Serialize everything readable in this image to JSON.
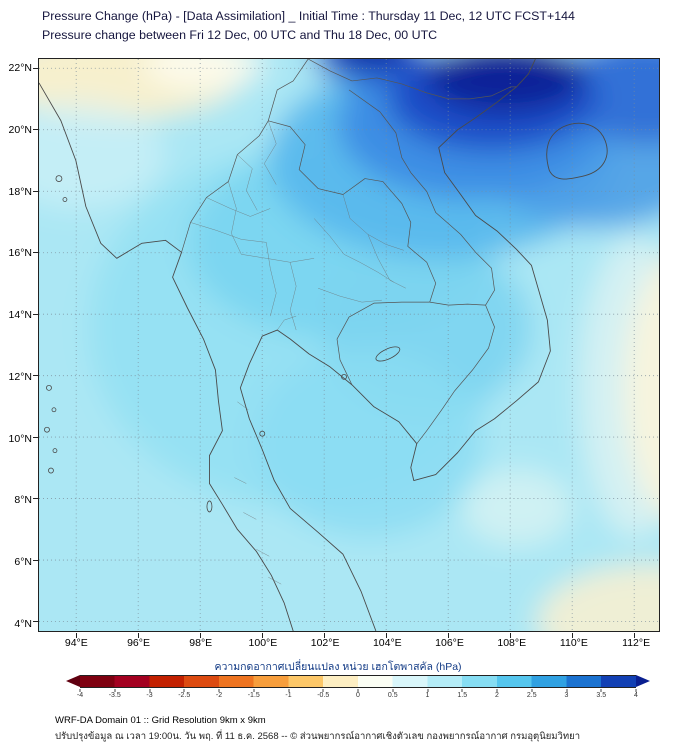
{
  "header": {
    "title_line1": "Pressure Change (hPa) - [Data Assimilation] _ Initial Time : Thursday 11 Dec, 12 UTC FCST+144",
    "title_line2": "Pressure change between Fri 12 Dec, 00 UTC and Thu 18 Dec, 00 UTC"
  },
  "axes": {
    "y_ticks": [
      "22°N",
      "20°N",
      "18°N",
      "16°N",
      "14°N",
      "12°N",
      "10°N",
      "8°N",
      "6°N",
      "4°N"
    ],
    "x_ticks": [
      "94°E",
      "96°E",
      "98°E",
      "100°E",
      "102°E",
      "104°E",
      "106°E",
      "108°E",
      "110°E",
      "112°E"
    ]
  },
  "colorbar": {
    "label": "ความกดอากาศเปลี่ยนแปลง หน่วย เฮกโตพาสคัล (hPa)",
    "tick_labels": [
      "-4",
      "-3.5",
      "-3",
      "-2.5",
      "-2",
      "-1.5",
      "-1",
      "-0.5",
      "0",
      "0.5",
      "1",
      "1.5",
      "2",
      "2.5",
      "3",
      "3.5",
      "4"
    ],
    "segment_colors": [
      "#7e0010",
      "#a30020",
      "#c22000",
      "#dc4a10",
      "#ee7420",
      "#f79e3c",
      "#fcc768",
      "#fdeec2",
      "#fbfef4",
      "#d9f6fa",
      "#b4ecf7",
      "#86ddf3",
      "#55c6ee",
      "#30a1e2",
      "#1b72d0",
      "#1240b4"
    ],
    "under_arrow_color": "#600010",
    "over_arrow_color": "#0a1f90"
  },
  "map": {
    "base_color": "#abe7f4",
    "max_anomaly_color": "#0d2398",
    "negative_patch_color": "#f7f0cd",
    "coastline_color": "#4a4a4a"
  },
  "footer": {
    "line1": "WRF-DA Domain 01 :: Grid Resolution 9km x 9km",
    "line2": "ปรับปรุงข้อมูล ณ เวลา 19:00น. วัน พฤ. ที่ 11 ธ.ค. 2568 -- © ส่วนพยากรณ์อากาศเชิงตัวเลข กองพยากรณ์อากาศ กรมอุตุนิยมวิทยา"
  },
  "chart_data": {
    "type": "heatmap",
    "title": "Pressure Change (hPa) - [Data Assimilation] _ Initial Time : Thursday 11 Dec, 12 UTC FCST+144",
    "subtitle": "Pressure change between Fri 12 Dec, 00 UTC and Thu 18 Dec, 00 UTC",
    "units": "hPa",
    "xlim_deg_east": [
      92.8,
      112.8
    ],
    "ylim_deg_north": [
      3.7,
      22.3
    ],
    "x_tick_values": [
      94,
      96,
      98,
      100,
      102,
      104,
      106,
      108,
      110,
      112
    ],
    "y_tick_values": [
      22,
      20,
      18,
      16,
      14,
      12,
      10,
      8,
      6,
      4
    ],
    "grid": "dashed",
    "colorbar_range": [
      -4,
      4
    ],
    "colorbar_step": 0.5,
    "colorbar_label": "ความกดอากาศเปลี่ยนแปลง หน่วย เฮกโตพาสคัล (hPa)",
    "sample_grid": {
      "lon_deg_east": [
        94,
        96,
        98,
        100,
        102,
        104,
        106,
        108,
        110,
        112
      ],
      "lat_deg_north": [
        22,
        20,
        18,
        16,
        14,
        12,
        10,
        8,
        6,
        4
      ],
      "values_hpa": [
        [
          -0.3,
          -0.2,
          0.2,
          0.8,
          3.0,
          3.2,
          3.8,
          4.2,
          3.6,
          2.8
        ],
        [
          0.2,
          0.3,
          0.6,
          1.0,
          1.8,
          2.8,
          3.6,
          3.8,
          3.0,
          2.2
        ],
        [
          0.6,
          0.8,
          1.0,
          1.2,
          1.8,
          2.2,
          2.6,
          2.4,
          1.8,
          1.4
        ],
        [
          0.8,
          1.0,
          1.1,
          1.2,
          1.5,
          1.8,
          1.8,
          1.5,
          1.2,
          0.8
        ],
        [
          0.9,
          1.0,
          1.1,
          1.2,
          1.3,
          1.4,
          1.3,
          1.0,
          0.5,
          0.2
        ],
        [
          0.9,
          1.0,
          1.0,
          1.1,
          1.2,
          1.3,
          1.1,
          0.8,
          0.3,
          -0.2
        ],
        [
          0.9,
          0.9,
          1.0,
          1.0,
          1.2,
          1.2,
          1.0,
          0.6,
          0.2,
          -0.2
        ],
        [
          0.8,
          0.9,
          0.9,
          1.0,
          1.1,
          1.0,
          0.8,
          0.4,
          0.2,
          -0.1
        ],
        [
          0.8,
          0.8,
          0.9,
          0.9,
          1.0,
          0.9,
          0.7,
          0.4,
          0.1,
          -0.1
        ],
        [
          0.7,
          0.8,
          0.8,
          0.9,
          0.9,
          0.8,
          0.6,
          0.3,
          0.0,
          -0.2
        ]
      ]
    },
    "features": [
      "Strong positive pressure-change maximum (> +4 hPa, dark navy) over northern Vietnam / Gulf of Tonkin around 104-110E, 18-22N, extending to top edge near 102-103E",
      "Broad weak positive change (~ +1 hPa, light cyan) over Thailand, Gulf of Thailand and Andaman Sea",
      "Slightly negative change (pale yellow, ~ -0.2 to -0.5 hPa) in northwest corner (94-99E, 20.5-22N), along the eastern edge south of ~14N, and in the southeast corner"
    ]
  }
}
